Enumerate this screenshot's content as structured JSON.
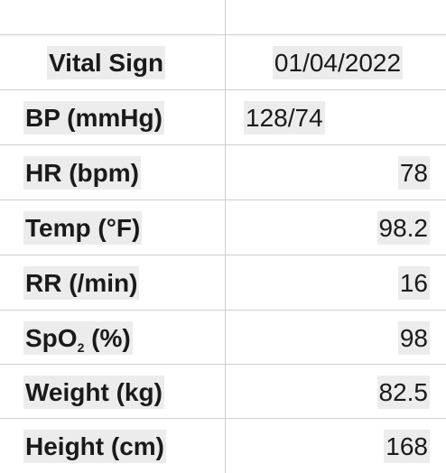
{
  "table": {
    "header": {
      "label": "Vital Sign",
      "date": "01/04/2022"
    },
    "rows": [
      {
        "label": "BP (mmHg)",
        "value": "128/74"
      },
      {
        "label": "HR (bpm)",
        "value": "78"
      },
      {
        "label": "Temp (°F)",
        "value": "98.2"
      },
      {
        "label": "RR (/min)",
        "value": "16"
      },
      {
        "label_prefix": "SpO",
        "label_sub": "2",
        "label_suffix": " (%)",
        "value": "98"
      },
      {
        "label": "Weight (kg)",
        "value": "82.5"
      },
      {
        "label": "Height (cm)",
        "value": "168"
      }
    ]
  }
}
